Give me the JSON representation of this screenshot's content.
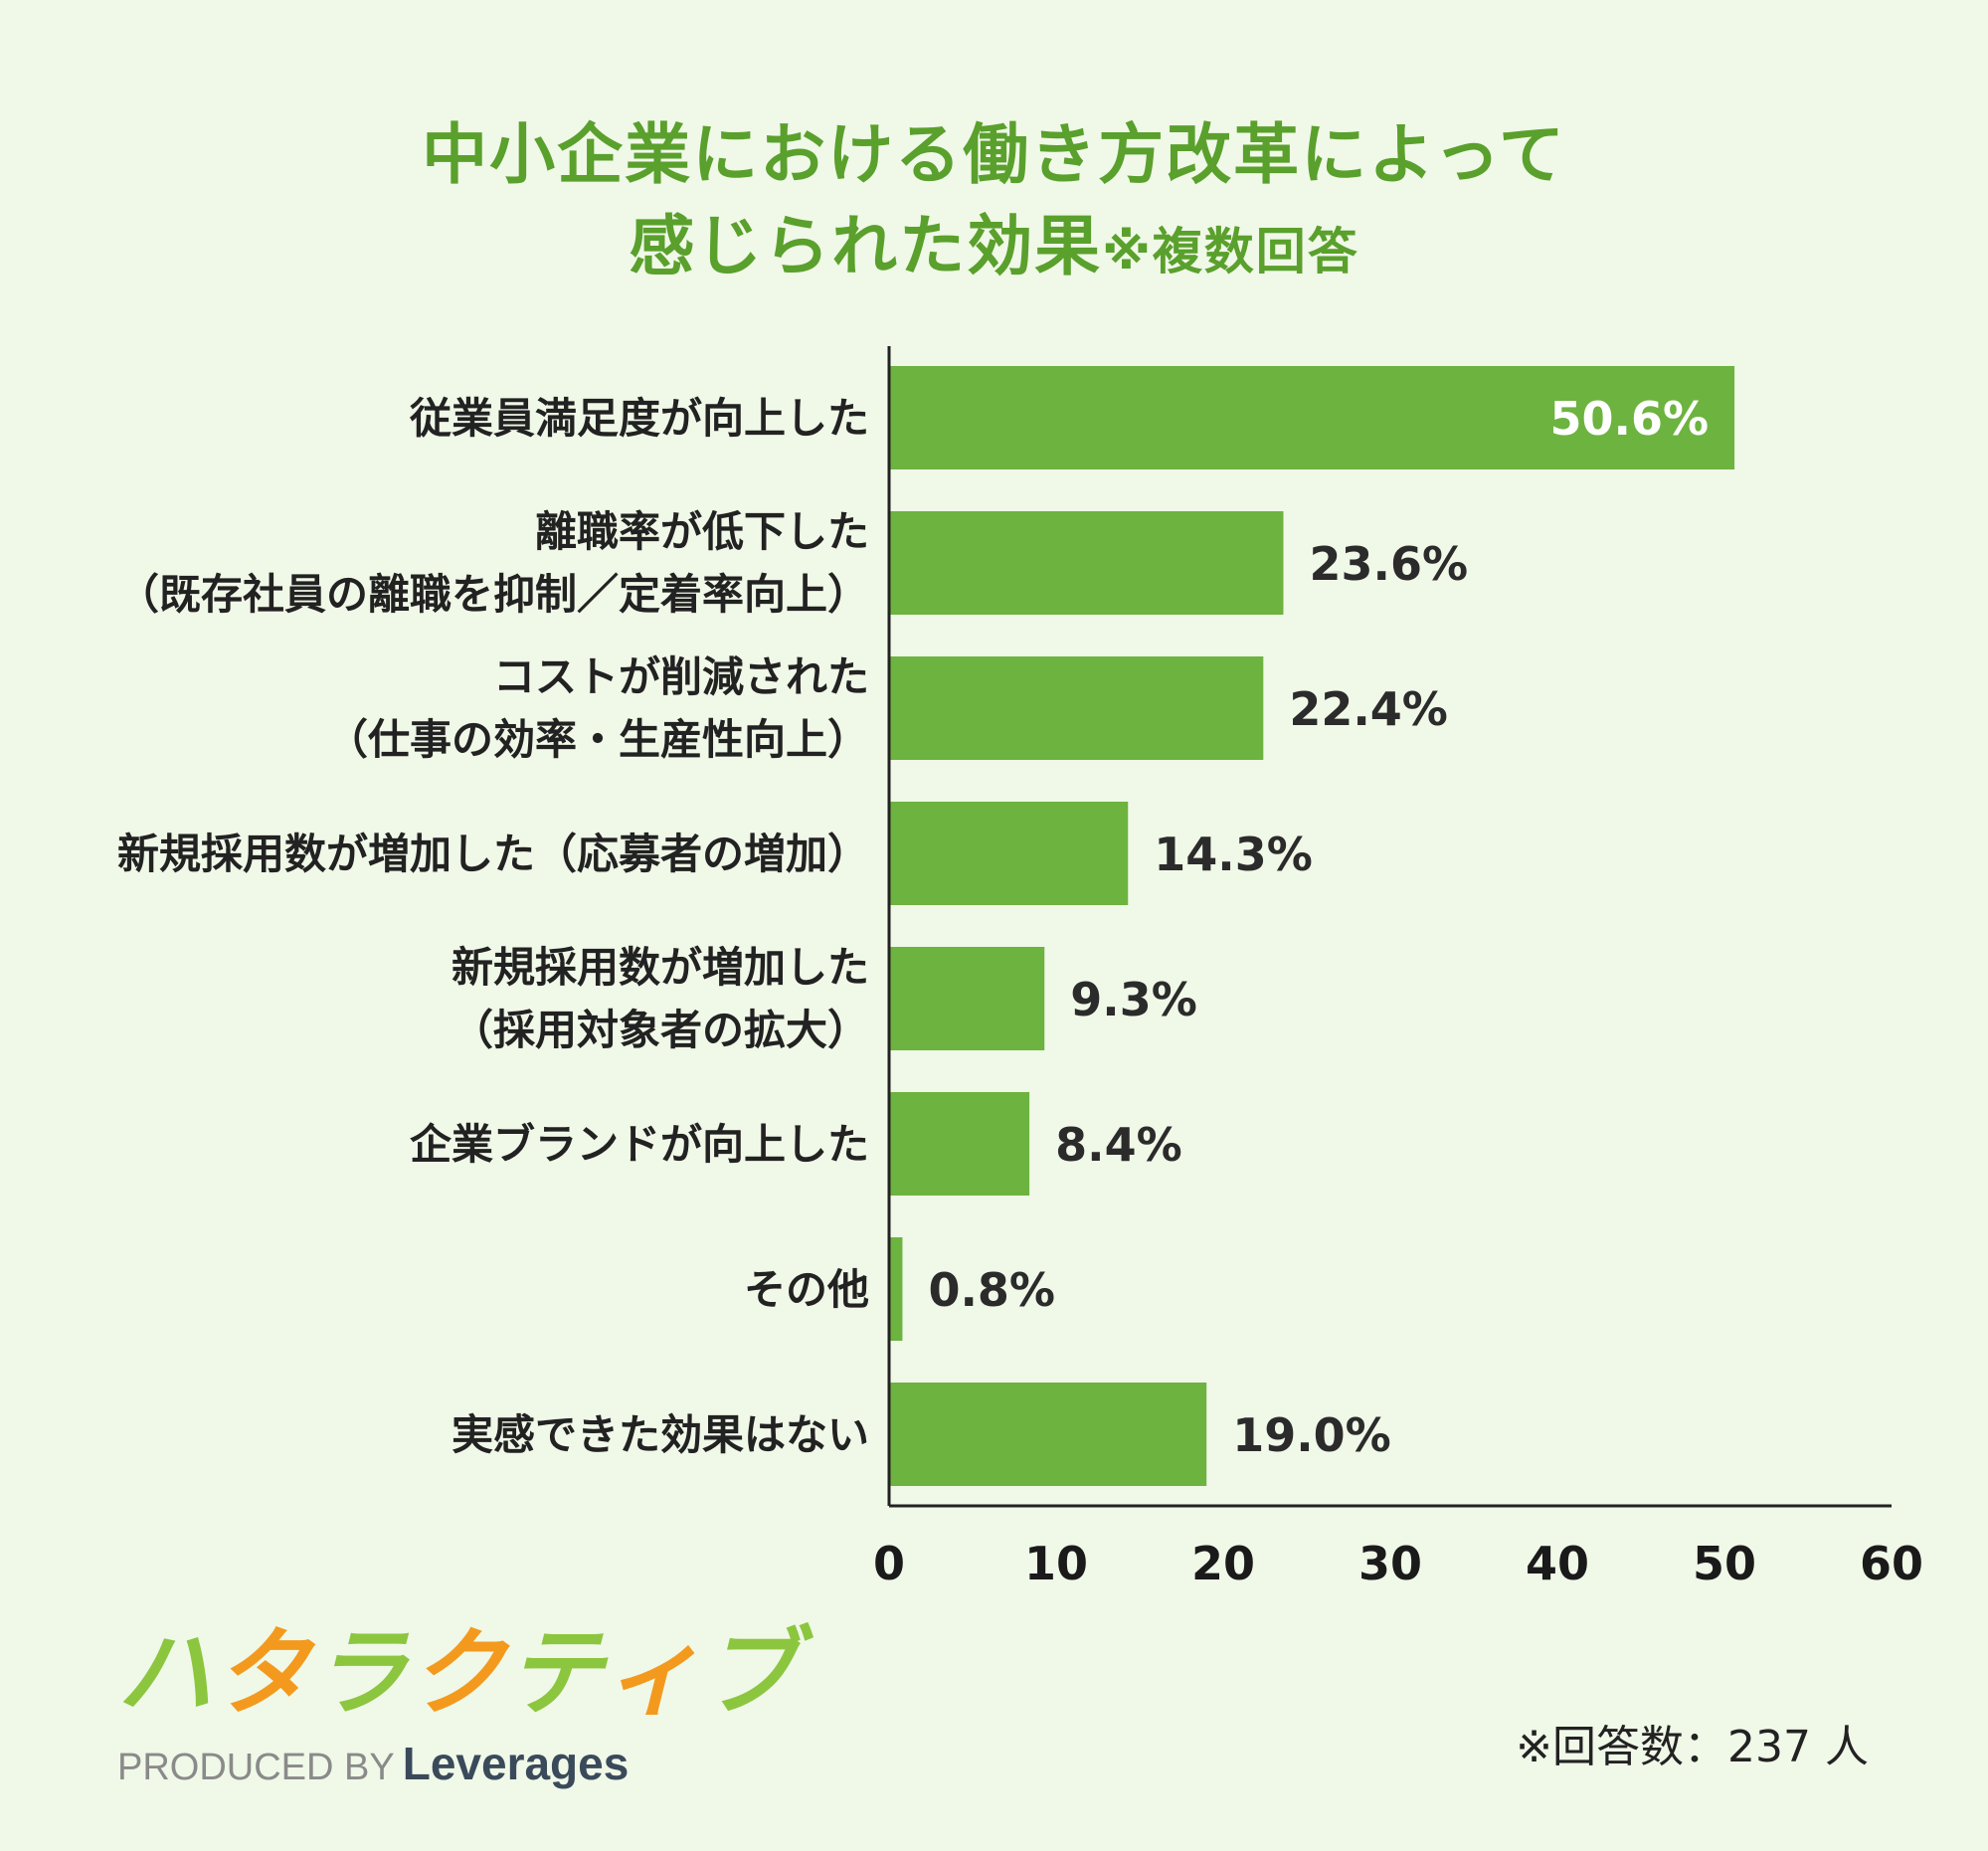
{
  "title": {
    "line1": "中小企業における働き方改革によって",
    "line2_main": "感じられた効果",
    "line2_sub": "※複数回答"
  },
  "chart_data": {
    "type": "bar",
    "orientation": "horizontal",
    "categories": [
      [
        "従業員満足度が向上した"
      ],
      [
        "離職率が低下した",
        "（既存社員の離職を抑制／定着率向上）"
      ],
      [
        "コストが削減された",
        "（仕事の効率・生産性向上）"
      ],
      [
        "新規採用数が増加した（応募者の増加）"
      ],
      [
        "新規採用数が増加した",
        "（採用対象者の拡大）"
      ],
      [
        "企業ブランドが向上した"
      ],
      [
        "その他"
      ],
      [
        "実感できた効果はない"
      ]
    ],
    "values": [
      50.6,
      23.6,
      22.4,
      14.3,
      9.3,
      8.4,
      0.8,
      19.0
    ],
    "value_labels": [
      "50.6%",
      "23.6%",
      "22.4%",
      "14.3%",
      "9.3%",
      "8.4%",
      "0.8%",
      "19.0%"
    ],
    "xlim": [
      0,
      60
    ],
    "xticks": [
      "0",
      "10",
      "20",
      "30",
      "40",
      "50",
      "60"
    ],
    "grid": false,
    "bar_color": "#6db33f"
  },
  "logo": {
    "mark_chars": [
      "ハ",
      "タ",
      "ラ",
      "ク",
      "テ",
      "ィ",
      "ブ"
    ],
    "mark_colors": [
      "#8cc63f",
      "#f39a1e",
      "#8cc63f",
      "#f39a1e",
      "#8cc63f",
      "#f39a1e",
      "#8cc63f"
    ],
    "produced_by": "PRODUCED BY",
    "brand": "Leverages"
  },
  "note": "※回答数：237 人"
}
